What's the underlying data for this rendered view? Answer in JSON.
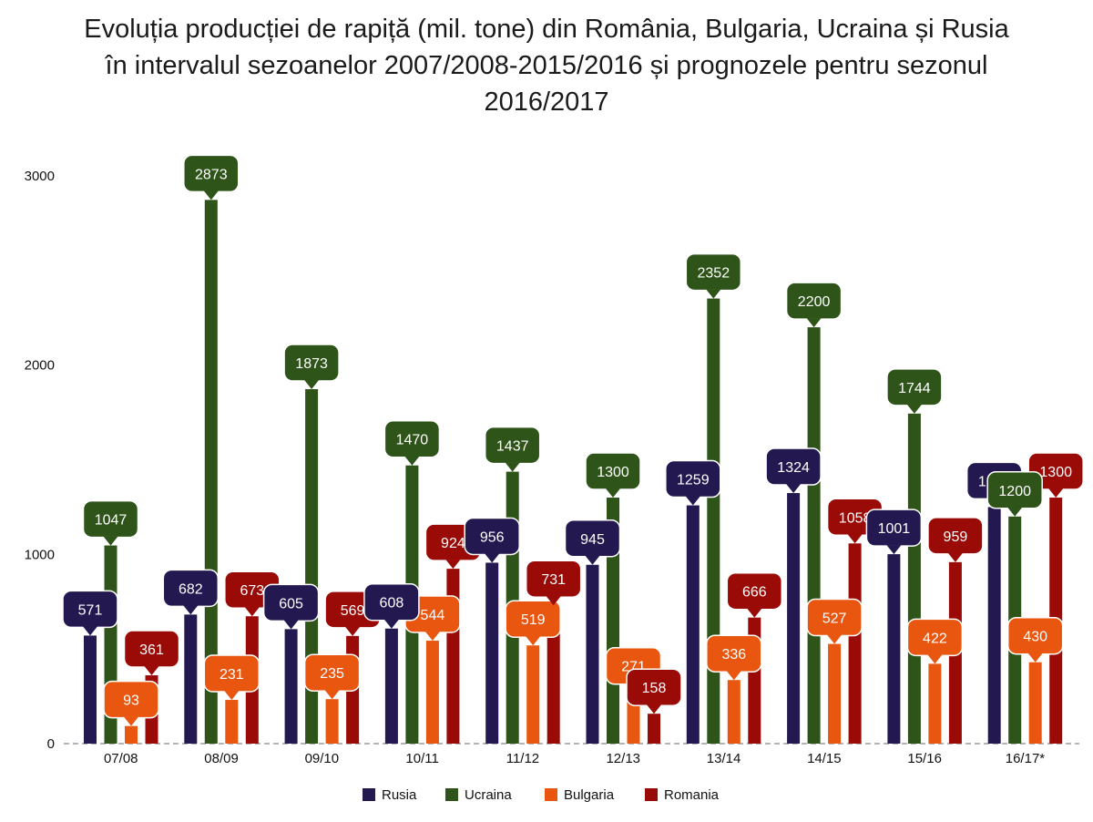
{
  "chart_data": {
    "type": "bar",
    "title_lines": [
      "Evoluția producției de rapiță (mil. tone) din România, Bulgaria, Ucraina și Rusia",
      "în intervalul sezoanelor 2007/2008-2015/2016 și prognozele pentru sezonul",
      "2016/2017"
    ],
    "categories": [
      "07/08",
      "08/09",
      "09/10",
      "10/11",
      "11/12",
      "12/13",
      "13/14",
      "14/15",
      "15/16",
      "16/17*"
    ],
    "series": [
      {
        "name": "Rusia",
        "color": "#23184f",
        "values": [
          571,
          682,
          605,
          608,
          956,
          945,
          1259,
          1324,
          1001,
          1250
        ]
      },
      {
        "name": "Ucraina",
        "color": "#2e5419",
        "values": [
          1047,
          2873,
          1873,
          1470,
          1437,
          1300,
          2352,
          2200,
          1744,
          1200
        ]
      },
      {
        "name": "Bulgaria",
        "color": "#e8560f",
        "values": [
          93,
          231,
          235,
          544,
          519,
          271,
          336,
          527,
          422,
          430
        ]
      },
      {
        "name": "Romania",
        "color": "#9a0a06",
        "values": [
          361,
          673,
          569,
          924,
          731,
          158,
          666,
          1058,
          959,
          1300
        ]
      }
    ],
    "yticks": [
      0,
      1000,
      2000,
      3000
    ],
    "ylim": [
      0,
      3000
    ],
    "legend_position": "bottom-center",
    "grid": false
  }
}
